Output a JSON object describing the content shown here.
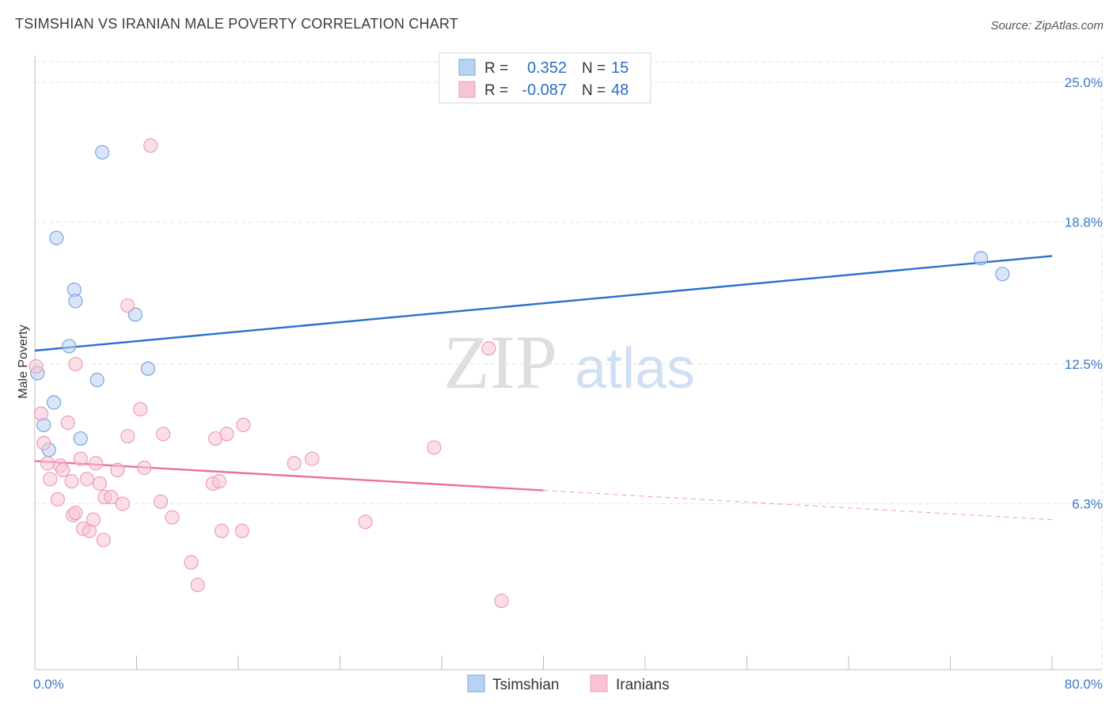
{
  "header": {
    "title": "TSIMSHIAN VS IRANIAN MALE POVERTY CORRELATION CHART",
    "source": "Source: ZipAtlas.com"
  },
  "watermark": {
    "zip": "ZIP",
    "atlas": "atlas"
  },
  "colors": {
    "tsimshian_fill": "#b8d2f3",
    "tsimshian_stroke": "#7aa6de",
    "tsimshian_line": "#2a6fcc",
    "iranians_fill": "#f8c4d3",
    "iranians_stroke": "#ee9db5",
    "iranians_line": "#e8729a",
    "tick": "#3b79c9",
    "grid": "#e2e2e2"
  },
  "chart_data": {
    "type": "scatter",
    "title": "TSIMSHIAN VS IRANIAN MALE POVERTY CORRELATION CHART",
    "xlabel": "",
    "ylabel": "Male Poverty",
    "xlim": [
      0,
      80
    ],
    "ylim": [
      0,
      26.2
    ],
    "x_tick_labels": [
      {
        "value": 0,
        "label": "0.0%"
      },
      {
        "value": 80,
        "label": "80.0%"
      }
    ],
    "x_minor_ticks": [
      0,
      8,
      16,
      24,
      32,
      40,
      48,
      56,
      64,
      72,
      80
    ],
    "y_ticks": [
      {
        "value": 6.3,
        "label": "6.3%"
      },
      {
        "value": 12.5,
        "label": "12.5%"
      },
      {
        "value": 18.8,
        "label": "18.8%"
      },
      {
        "value": 25.0,
        "label": "25.0%"
      }
    ],
    "grid": true,
    "legend_position": "top-center",
    "legend": [
      {
        "series": "Tsimshian",
        "r_label": "R =",
        "r_value": "0.352",
        "n_label": "N =",
        "n_value": "15"
      },
      {
        "series": "Iranians",
        "r_label": "R =",
        "r_value": "-0.087",
        "n_label": "N =",
        "n_value": "48"
      }
    ],
    "series": [
      {
        "name": "Tsimshian",
        "points": [
          [
            0.2,
            12.1
          ],
          [
            0.7,
            9.8
          ],
          [
            1.1,
            8.7
          ],
          [
            1.5,
            10.8
          ],
          [
            1.7,
            18.1
          ],
          [
            2.7,
            13.3
          ],
          [
            3.1,
            15.8
          ],
          [
            3.2,
            15.3
          ],
          [
            3.6,
            9.2
          ],
          [
            4.9,
            11.8
          ],
          [
            5.3,
            21.9
          ],
          [
            7.9,
            14.7
          ],
          [
            8.9,
            12.3
          ],
          [
            74.4,
            17.2
          ],
          [
            76.1,
            16.5
          ]
        ],
        "trend": {
          "x0": 0,
          "y0": 13.1,
          "x1": 80,
          "y1": 17.3,
          "solid_until": 80
        }
      },
      {
        "name": "Iranians",
        "points": [
          [
            0.1,
            12.4
          ],
          [
            0.5,
            10.3
          ],
          [
            0.7,
            9.0
          ],
          [
            1.0,
            8.1
          ],
          [
            1.2,
            7.4
          ],
          [
            1.8,
            6.5
          ],
          [
            2.0,
            8.0
          ],
          [
            2.2,
            7.8
          ],
          [
            2.6,
            9.9
          ],
          [
            2.9,
            7.3
          ],
          [
            3.0,
            5.8
          ],
          [
            3.2,
            5.9
          ],
          [
            3.2,
            12.5
          ],
          [
            3.6,
            8.3
          ],
          [
            3.8,
            5.2
          ],
          [
            4.1,
            7.4
          ],
          [
            4.3,
            5.1
          ],
          [
            4.6,
            5.6
          ],
          [
            4.8,
            8.1
          ],
          [
            5.1,
            7.2
          ],
          [
            5.4,
            4.7
          ],
          [
            5.5,
            6.6
          ],
          [
            6.0,
            6.6
          ],
          [
            6.5,
            7.8
          ],
          [
            6.9,
            6.3
          ],
          [
            7.3,
            9.3
          ],
          [
            7.3,
            15.1
          ],
          [
            8.3,
            10.5
          ],
          [
            8.6,
            7.9
          ],
          [
            9.1,
            22.2
          ],
          [
            9.9,
            6.4
          ],
          [
            10.1,
            9.4
          ],
          [
            10.8,
            5.7
          ],
          [
            12.3,
            3.7
          ],
          [
            12.8,
            2.7
          ],
          [
            14.0,
            7.2
          ],
          [
            14.2,
            9.2
          ],
          [
            14.5,
            7.3
          ],
          [
            14.7,
            5.1
          ],
          [
            15.1,
            9.4
          ],
          [
            16.3,
            5.1
          ],
          [
            16.4,
            9.8
          ],
          [
            20.4,
            8.1
          ],
          [
            21.8,
            8.3
          ],
          [
            26.0,
            5.5
          ],
          [
            31.4,
            8.8
          ],
          [
            35.7,
            13.2
          ],
          [
            36.7,
            2.0
          ]
        ],
        "trend": {
          "x0": 0,
          "y0": 8.2,
          "x1": 80,
          "y1": 5.6,
          "solid_until": 40
        }
      }
    ]
  },
  "bottom_legend": [
    {
      "label": "Tsimshian"
    },
    {
      "label": "Iranians"
    }
  ]
}
